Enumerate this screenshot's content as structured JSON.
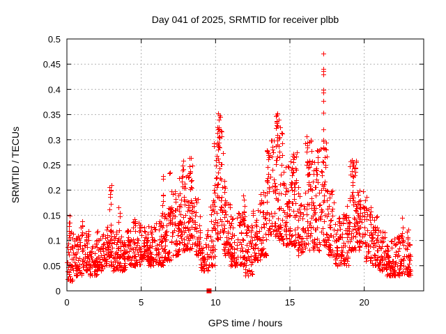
{
  "chart_data": {
    "type": "scatter",
    "title": "Day 041 of 2025, SRMTID for receiver plbb",
    "xlabel": "GPS time / hours",
    "ylabel": "SRMTID / TECUs",
    "xlim": [
      0,
      24
    ],
    "ylim": [
      0,
      0.5
    ],
    "x_ticks": [
      0,
      5,
      10,
      15,
      20
    ],
    "x_tick_labels": [
      "0",
      "5",
      "10",
      "15",
      "20"
    ],
    "y_ticks": [
      0,
      0.05,
      0.1,
      0.15,
      0.2,
      0.25,
      0.3,
      0.35,
      0.4,
      0.45,
      0.5
    ],
    "y_tick_labels": [
      "0",
      "0.05",
      "0.1",
      "0.15",
      "0.2",
      "0.25",
      "0.3",
      "0.35",
      "0.4",
      "0.45",
      "0.5"
    ],
    "grid": true,
    "grid_color": "#b0b0b0",
    "marker": "plus",
    "marker_color": "#ff0000",
    "series_density_bands": [
      [
        0.0,
        0.5,
        0.02,
        0.13,
        45
      ],
      [
        0.5,
        1.0,
        0.03,
        0.11,
        45
      ],
      [
        1.0,
        1.5,
        0.04,
        0.12,
        45
      ],
      [
        1.5,
        2.0,
        0.03,
        0.1,
        45
      ],
      [
        2.0,
        2.5,
        0.04,
        0.12,
        45
      ],
      [
        2.5,
        3.0,
        0.05,
        0.13,
        45
      ],
      [
        3.0,
        3.5,
        0.04,
        0.12,
        45
      ],
      [
        3.5,
        4.0,
        0.04,
        0.11,
        45
      ],
      [
        4.0,
        4.5,
        0.05,
        0.12,
        45
      ],
      [
        4.5,
        5.0,
        0.05,
        0.14,
        45
      ],
      [
        5.0,
        5.5,
        0.06,
        0.13,
        45
      ],
      [
        5.5,
        6.0,
        0.05,
        0.13,
        45
      ],
      [
        6.0,
        6.5,
        0.05,
        0.14,
        45
      ],
      [
        6.5,
        7.0,
        0.06,
        0.17,
        45
      ],
      [
        7.0,
        7.5,
        0.07,
        0.2,
        50
      ],
      [
        7.5,
        8.0,
        0.08,
        0.23,
        50
      ],
      [
        8.0,
        8.5,
        0.08,
        0.25,
        50
      ],
      [
        8.5,
        9.0,
        0.07,
        0.2,
        45
      ],
      [
        9.0,
        9.5,
        0.04,
        0.12,
        40
      ],
      [
        9.5,
        10.0,
        0.05,
        0.18,
        40
      ],
      [
        10.0,
        10.5,
        0.1,
        0.33,
        55
      ],
      [
        10.5,
        11.0,
        0.07,
        0.18,
        45
      ],
      [
        11.0,
        11.5,
        0.05,
        0.15,
        45
      ],
      [
        11.5,
        12.0,
        0.05,
        0.16,
        45
      ],
      [
        12.0,
        12.5,
        0.03,
        0.13,
        45
      ],
      [
        12.5,
        13.0,
        0.06,
        0.16,
        45
      ],
      [
        13.0,
        13.5,
        0.07,
        0.2,
        45
      ],
      [
        13.5,
        14.0,
        0.1,
        0.3,
        50
      ],
      [
        14.0,
        14.5,
        0.1,
        0.33,
        55
      ],
      [
        14.5,
        15.0,
        0.09,
        0.25,
        50
      ],
      [
        15.0,
        15.5,
        0.09,
        0.28,
        50
      ],
      [
        15.5,
        16.0,
        0.07,
        0.22,
        45
      ],
      [
        16.0,
        16.5,
        0.08,
        0.3,
        50
      ],
      [
        16.5,
        17.0,
        0.08,
        0.28,
        50
      ],
      [
        17.0,
        17.5,
        0.09,
        0.3,
        50
      ],
      [
        17.5,
        18.0,
        0.07,
        0.2,
        45
      ],
      [
        18.0,
        18.5,
        0.05,
        0.15,
        45
      ],
      [
        18.5,
        19.0,
        0.05,
        0.18,
        45
      ],
      [
        19.0,
        19.5,
        0.08,
        0.26,
        50
      ],
      [
        19.5,
        20.0,
        0.08,
        0.2,
        45
      ],
      [
        20.0,
        20.5,
        0.06,
        0.19,
        45
      ],
      [
        20.5,
        21.0,
        0.05,
        0.15,
        45
      ],
      [
        21.0,
        21.5,
        0.04,
        0.12,
        45
      ],
      [
        21.5,
        22.0,
        0.03,
        0.1,
        45
      ],
      [
        22.0,
        22.5,
        0.03,
        0.11,
        45
      ],
      [
        22.5,
        23.1,
        0.03,
        0.13,
        50
      ]
    ],
    "streaks": [
      [
        0.15,
        0.1,
        0.15,
        6
      ],
      [
        1.0,
        0.1,
        0.14,
        5
      ],
      [
        2.9,
        0.13,
        0.21,
        8
      ],
      [
        3.5,
        0.12,
        0.17,
        5
      ],
      [
        4.5,
        0.12,
        0.16,
        4
      ],
      [
        6.45,
        0.14,
        0.23,
        8
      ],
      [
        6.95,
        0.12,
        0.25,
        10
      ],
      [
        7.8,
        0.2,
        0.27,
        8
      ],
      [
        8.3,
        0.2,
        0.28,
        8
      ],
      [
        9.9,
        0.15,
        0.3,
        6
      ],
      [
        10.2,
        0.25,
        0.35,
        12
      ],
      [
        10.6,
        0.15,
        0.25,
        6
      ],
      [
        11.9,
        0.14,
        0.2,
        5
      ],
      [
        13.45,
        0.2,
        0.3,
        6
      ],
      [
        14.1,
        0.28,
        0.35,
        10
      ],
      [
        15.2,
        0.22,
        0.3,
        6
      ],
      [
        16.15,
        0.22,
        0.32,
        8
      ],
      [
        16.8,
        0.2,
        0.3,
        6
      ],
      [
        19.2,
        0.18,
        0.26,
        8
      ],
      [
        22.5,
        0.1,
        0.15,
        6
      ]
    ],
    "outlier_points": [
      [
        17.25,
        0.471
      ],
      [
        17.24,
        0.44
      ],
      [
        17.25,
        0.437
      ],
      [
        17.26,
        0.43
      ],
      [
        17.24,
        0.399
      ],
      [
        17.25,
        0.394
      ],
      [
        17.26,
        0.377
      ],
      [
        17.24,
        0.354
      ],
      [
        17.25,
        0.32
      ],
      [
        17.27,
        0.3
      ],
      [
        17.23,
        0.285
      ],
      [
        3.0,
        0.21
      ],
      [
        10.15,
        0.352
      ],
      [
        10.3,
        0.345
      ],
      [
        14.15,
        0.352
      ],
      [
        14.25,
        0.34
      ]
    ],
    "flagged_point": {
      "x": 9.56,
      "y": 0,
      "marker": "filled-square",
      "color": "#ff0000"
    }
  }
}
